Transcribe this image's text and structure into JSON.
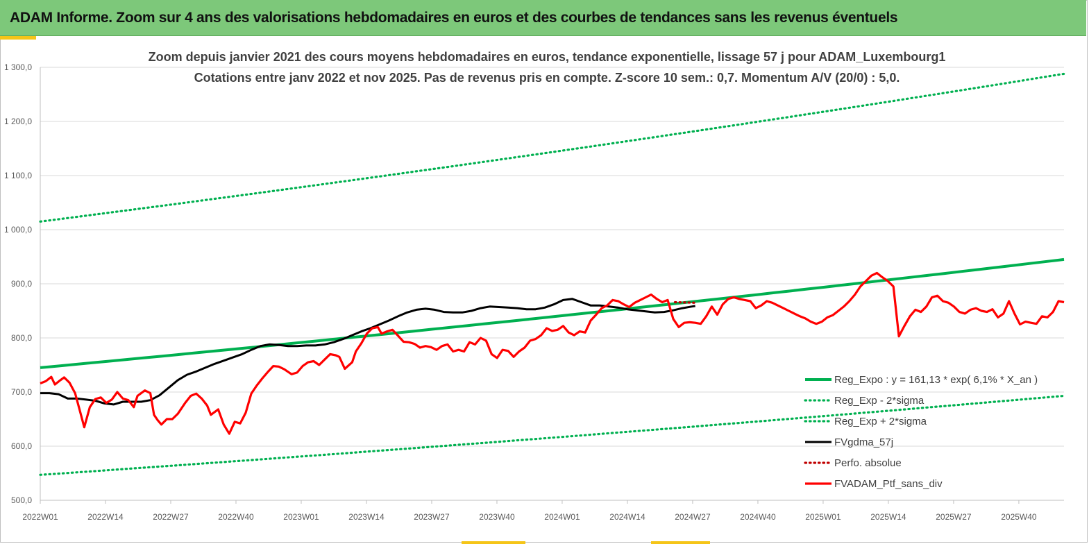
{
  "header": {
    "title": "ADAM Informe. Zoom sur 4 ans des valorisations hebdomadaires en euros et des courbes de tendances sans les revenus éventuels"
  },
  "colors": {
    "header_bg": "#7dc87a",
    "accent": "#f5c518",
    "trend": "#00b050",
    "price": "#ff0000",
    "smooth": "#000000",
    "perf": "#c00000"
  },
  "chart_data": {
    "type": "line",
    "title_line1": "Zoom depuis janvier 2021 des cours moyens hebdomadaires  en euros, tendance exponentielle, lissage 57 j pour ADAM_Luxembourg1",
    "title_line2": "Cotations  entre janv 2022 et nov 2025. Pas de revenus pris en compte. Z-score 10 sem.: 0,7. Momentum A/V (20/0) : 5,0.",
    "ylim": [
      500,
      1300
    ],
    "y_ticks": [
      "500,0",
      "600,0",
      "700,0",
      "800,0",
      "900,0",
      "1 000,0",
      "1 100,0",
      "1 200,0",
      "1 300,0"
    ],
    "x_count": 205,
    "x_tick_labels": [
      "2022W01",
      "2022W14",
      "2022W27",
      "2022W40",
      "2023W01",
      "2023W14",
      "2023W27",
      "2023W40",
      "2024W01",
      "2024W14",
      "2024W27",
      "2024W40",
      "2025W01",
      "2025W14",
      "2025W27",
      "2025W40"
    ],
    "grid": true,
    "legend_position": "bottom-right",
    "series": [
      {
        "name": "Reg_Expo : y = 161,13 * exp( 6,1% *  X_an )",
        "style": "solid-thick",
        "color": "#00b050",
        "start": 745,
        "end": 945
      },
      {
        "name": "Reg_Exp - 2*sigma",
        "style": "dotted",
        "color": "#00b050",
        "start": 547,
        "end": 693
      },
      {
        "name": "Reg_Exp + 2*sigma",
        "style": "dotted",
        "color": "#00b050",
        "start": 1015,
        "end": 1288
      },
      {
        "name": "FVgdma_57j",
        "style": "solid",
        "color": "#000000",
        "keypoints": [
          [
            0,
            698
          ],
          [
            5,
            698
          ],
          [
            10,
            696
          ],
          [
            15,
            688
          ],
          [
            20,
            688
          ],
          [
            25,
            686
          ],
          [
            30,
            684
          ],
          [
            35,
            679
          ],
          [
            40,
            677
          ],
          [
            45,
            682
          ],
          [
            50,
            682
          ],
          [
            55,
            682
          ],
          [
            60,
            685
          ],
          [
            65,
            694
          ],
          [
            70,
            708
          ],
          [
            75,
            722
          ],
          [
            80,
            732
          ],
          [
            85,
            738
          ],
          [
            90,
            745
          ],
          [
            95,
            752
          ],
          [
            100,
            758
          ],
          [
            105,
            764
          ],
          [
            110,
            770
          ],
          [
            115,
            778
          ],
          [
            120,
            785
          ],
          [
            125,
            788
          ],
          [
            130,
            787
          ],
          [
            135,
            785
          ],
          [
            140,
            785
          ],
          [
            145,
            786
          ],
          [
            150,
            786
          ],
          [
            155,
            788
          ],
          [
            160,
            792
          ],
          [
            165,
            798
          ],
          [
            170,
            805
          ],
          [
            175,
            812
          ],
          [
            180,
            818
          ],
          [
            185,
            825
          ],
          [
            190,
            832
          ],
          [
            195,
            840
          ],
          [
            200,
            847
          ],
          [
            205,
            852
          ],
          [
            210,
            854
          ],
          [
            215,
            852
          ],
          [
            220,
            848
          ],
          [
            225,
            847
          ],
          [
            230,
            847
          ],
          [
            235,
            850
          ],
          [
            240,
            855
          ],
          [
            245,
            858
          ],
          [
            250,
            857
          ],
          [
            255,
            856
          ],
          [
            260,
            855
          ],
          [
            265,
            853
          ],
          [
            270,
            853
          ],
          [
            275,
            856
          ],
          [
            280,
            862
          ],
          [
            285,
            870
          ],
          [
            290,
            872
          ],
          [
            295,
            866
          ],
          [
            300,
            860
          ],
          [
            305,
            860
          ],
          [
            310,
            858
          ],
          [
            315,
            856
          ],
          [
            320,
            853
          ],
          [
            325,
            851
          ],
          [
            330,
            849
          ],
          [
            335,
            847
          ],
          [
            340,
            848
          ],
          [
            345,
            851
          ],
          [
            350,
            855
          ],
          [
            355,
            858
          ],
          [
            357,
            859
          ]
        ]
      },
      {
        "name": "Perfo. absolue",
        "style": "dotted",
        "color": "#c00000",
        "keypoints": [
          [
            346,
            866
          ],
          [
            357,
            865
          ]
        ]
      },
      {
        "name": "FVADAM_Ptf_sans_div",
        "style": "solid-thick",
        "color": "#ff0000",
        "keypoints": [
          [
            0,
            716
          ],
          [
            3,
            720
          ],
          [
            6,
            728
          ],
          [
            8,
            714
          ],
          [
            11,
            722
          ],
          [
            13,
            727
          ],
          [
            16,
            717
          ],
          [
            19,
            698
          ],
          [
            22,
            660
          ],
          [
            24,
            635
          ],
          [
            27,
            672
          ],
          [
            30,
            687
          ],
          [
            33,
            690
          ],
          [
            36,
            680
          ],
          [
            39,
            686
          ],
          [
            42,
            700
          ],
          [
            45,
            688
          ],
          [
            48,
            685
          ],
          [
            51,
            672
          ],
          [
            53,
            693
          ],
          [
            57,
            703
          ],
          [
            60,
            698
          ],
          [
            62,
            658
          ],
          [
            64,
            648
          ],
          [
            66,
            640
          ],
          [
            69,
            650
          ],
          [
            72,
            650
          ],
          [
            75,
            660
          ],
          [
            79,
            680
          ],
          [
            82,
            693
          ],
          [
            85,
            697
          ],
          [
            88,
            688
          ],
          [
            91,
            675
          ],
          [
            93,
            658
          ],
          [
            97,
            668
          ],
          [
            100,
            640
          ],
          [
            103,
            623
          ],
          [
            106,
            645
          ],
          [
            109,
            642
          ],
          [
            112,
            662
          ],
          [
            115,
            697
          ],
          [
            118,
            712
          ],
          [
            121,
            725
          ],
          [
            124,
            737
          ],
          [
            127,
            748
          ],
          [
            130,
            747
          ],
          [
            133,
            742
          ],
          [
            137,
            733
          ],
          [
            140,
            736
          ],
          [
            143,
            748
          ],
          [
            146,
            755
          ],
          [
            149,
            757
          ],
          [
            152,
            750
          ],
          [
            155,
            760
          ],
          [
            158,
            770
          ],
          [
            161,
            768
          ],
          [
            163,
            765
          ],
          [
            166,
            743
          ],
          [
            170,
            755
          ],
          [
            172,
            775
          ],
          [
            175,
            790
          ],
          [
            178,
            808
          ],
          [
            181,
            818
          ],
          [
            184,
            820
          ],
          [
            186,
            808
          ],
          [
            189,
            812
          ],
          [
            192,
            815
          ],
          [
            195,
            804
          ],
          [
            198,
            793
          ],
          [
            201,
            792
          ],
          [
            204,
            789
          ],
          [
            207,
            782
          ],
          [
            210,
            785
          ],
          [
            213,
            783
          ],
          [
            216,
            778
          ],
          [
            219,
            785
          ],
          [
            222,
            788
          ],
          [
            225,
            775
          ],
          [
            228,
            778
          ],
          [
            231,
            775
          ],
          [
            234,
            792
          ],
          [
            237,
            788
          ],
          [
            240,
            800
          ],
          [
            243,
            795
          ],
          [
            246,
            770
          ],
          [
            249,
            763
          ],
          [
            252,
            778
          ],
          [
            255,
            776
          ],
          [
            258,
            765
          ],
          [
            261,
            775
          ],
          [
            264,
            782
          ],
          [
            267,
            795
          ],
          [
            270,
            798
          ],
          [
            273,
            805
          ],
          [
            276,
            818
          ],
          [
            279,
            813
          ],
          [
            282,
            815
          ],
          [
            285,
            822
          ],
          [
            288,
            810
          ],
          [
            291,
            805
          ],
          [
            294,
            812
          ],
          [
            297,
            810
          ],
          [
            300,
            832
          ],
          [
            303,
            843
          ],
          [
            306,
            855
          ],
          [
            309,
            860
          ],
          [
            312,
            870
          ],
          [
            315,
            868
          ],
          [
            318,
            862
          ],
          [
            321,
            857
          ],
          [
            324,
            865
          ],
          [
            327,
            870
          ],
          [
            330,
            875
          ],
          [
            333,
            880
          ],
          [
            336,
            872
          ],
          [
            339,
            866
          ],
          [
            342,
            870
          ],
          [
            345,
            835
          ],
          [
            348,
            820
          ],
          [
            351,
            828
          ],
          [
            354,
            829
          ],
          [
            357,
            828
          ],
          [
            360,
            826
          ],
          [
            363,
            840
          ],
          [
            366,
            858
          ],
          [
            369,
            843
          ],
          [
            372,
            862
          ],
          [
            375,
            872
          ],
          [
            378,
            875
          ],
          [
            381,
            872
          ],
          [
            384,
            870
          ],
          [
            387,
            868
          ],
          [
            390,
            855
          ],
          [
            393,
            860
          ],
          [
            396,
            868
          ],
          [
            399,
            865
          ],
          [
            402,
            860
          ],
          [
            405,
            855
          ],
          [
            408,
            850
          ],
          [
            411,
            845
          ],
          [
            414,
            840
          ],
          [
            417,
            836
          ],
          [
            420,
            830
          ],
          [
            423,
            826
          ],
          [
            426,
            830
          ],
          [
            429,
            838
          ],
          [
            432,
            842
          ],
          [
            435,
            850
          ],
          [
            438,
            858
          ],
          [
            441,
            868
          ],
          [
            444,
            880
          ],
          [
            447,
            895
          ],
          [
            450,
            905
          ],
          [
            453,
            915
          ],
          [
            456,
            920
          ],
          [
            459,
            912
          ],
          [
            462,
            905
          ],
          [
            465,
            895
          ],
          [
            468,
            803
          ],
          [
            471,
            822
          ],
          [
            474,
            840
          ],
          [
            477,
            852
          ],
          [
            480,
            848
          ],
          [
            483,
            858
          ],
          [
            486,
            875
          ],
          [
            489,
            878
          ],
          [
            492,
            868
          ],
          [
            495,
            865
          ],
          [
            498,
            858
          ],
          [
            501,
            848
          ],
          [
            504,
            845
          ],
          [
            507,
            852
          ],
          [
            510,
            855
          ],
          [
            513,
            850
          ],
          [
            516,
            848
          ],
          [
            519,
            853
          ],
          [
            522,
            838
          ],
          [
            525,
            845
          ],
          [
            528,
            868
          ],
          [
            531,
            845
          ],
          [
            534,
            825
          ],
          [
            537,
            830
          ],
          [
            540,
            828
          ],
          [
            543,
            826
          ],
          [
            546,
            840
          ],
          [
            549,
            838
          ],
          [
            552,
            848
          ],
          [
            555,
            868
          ],
          [
            558,
            866
          ]
        ]
      }
    ]
  },
  "legend": {
    "items": [
      {
        "label": "Reg_Expo : y = 161,13 * exp( 6,1% *  X_an )",
        "style": "solid-thick",
        "color": "#00b050"
      },
      {
        "label": "Reg_Exp - 2*sigma",
        "style": "dotted",
        "color": "#00b050"
      },
      {
        "label": "Reg_Exp + 2*sigma",
        "style": "dotted",
        "color": "#00b050"
      },
      {
        "label": "FVgdma_57j",
        "style": "solid",
        "color": "#000000"
      },
      {
        "label": "Perfo. absolue",
        "style": "dotted",
        "color": "#c00000"
      },
      {
        "label": "FVADAM_Ptf_sans_div",
        "style": "solid-thick",
        "color": "#ff0000"
      }
    ]
  }
}
